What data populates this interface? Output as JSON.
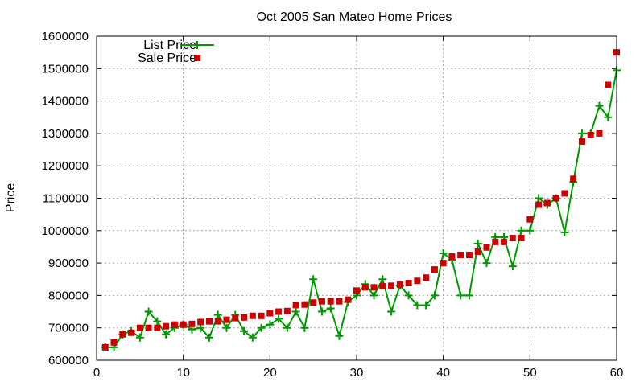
{
  "chart_data": {
    "type": "line",
    "title": "Oct 2005 San Mateo Home Prices",
    "xlabel": "",
    "ylabel": "Price",
    "xlim": [
      0,
      60
    ],
    "ylim": [
      600000,
      1600000
    ],
    "xticks": [
      0,
      10,
      20,
      30,
      40,
      50,
      60
    ],
    "yticks": [
      600000,
      700000,
      800000,
      900000,
      1000000,
      1100000,
      1200000,
      1300000,
      1400000,
      1500000,
      1600000
    ],
    "grid": true,
    "legend_position": "top-left",
    "x": [
      1,
      2,
      3,
      4,
      5,
      6,
      7,
      8,
      9,
      10,
      11,
      12,
      13,
      14,
      15,
      16,
      17,
      18,
      19,
      20,
      21,
      22,
      23,
      24,
      25,
      26,
      27,
      28,
      29,
      30,
      31,
      32,
      33,
      34,
      35,
      36,
      37,
      38,
      39,
      40,
      41,
      42,
      43,
      44,
      45,
      46,
      47,
      48,
      49,
      50,
      51,
      52,
      53,
      54,
      55,
      56,
      57,
      58,
      59,
      60
    ],
    "series": [
      {
        "name": "List Price",
        "style": "line+cross",
        "color": "#009900",
        "values": [
          640000,
          640000,
          680000,
          690000,
          670000,
          750000,
          720000,
          680000,
          700000,
          710000,
          695000,
          700000,
          670000,
          740000,
          700000,
          740000,
          690000,
          670000,
          700000,
          710000,
          728000,
          700000,
          750000,
          700000,
          850000,
          750000,
          760000,
          675000,
          780000,
          800000,
          835000,
          800000,
          850000,
          750000,
          830000,
          800000,
          770000,
          770000,
          800000,
          930000,
          910000,
          800000,
          800000,
          960000,
          900000,
          980000,
          980000,
          890000,
          1000000,
          1000000,
          1100000,
          1080000,
          1100000,
          995000,
          1150000,
          1300000,
          1300000,
          1385000,
          1350000,
          1495000
        ]
      },
      {
        "name": "Sale Price",
        "style": "square-marker",
        "color": "#cc0000",
        "values": [
          640000,
          655000,
          680000,
          685000,
          700000,
          700000,
          700000,
          705000,
          710000,
          710000,
          712000,
          718000,
          720000,
          720000,
          725000,
          730000,
          732000,
          737000,
          737000,
          745000,
          750000,
          752000,
          770000,
          772000,
          778000,
          782000,
          782000,
          782000,
          787000,
          815000,
          825000,
          825000,
          828000,
          830000,
          833000,
          838000,
          845000,
          855000,
          880000,
          900000,
          920000,
          925000,
          925000,
          935000,
          948000,
          965000,
          965000,
          977000,
          977000,
          1035000,
          1080000,
          1085000,
          1100000,
          1115000,
          1160000,
          1275000,
          1295000,
          1300000,
          1450000,
          1550000
        ]
      }
    ]
  }
}
